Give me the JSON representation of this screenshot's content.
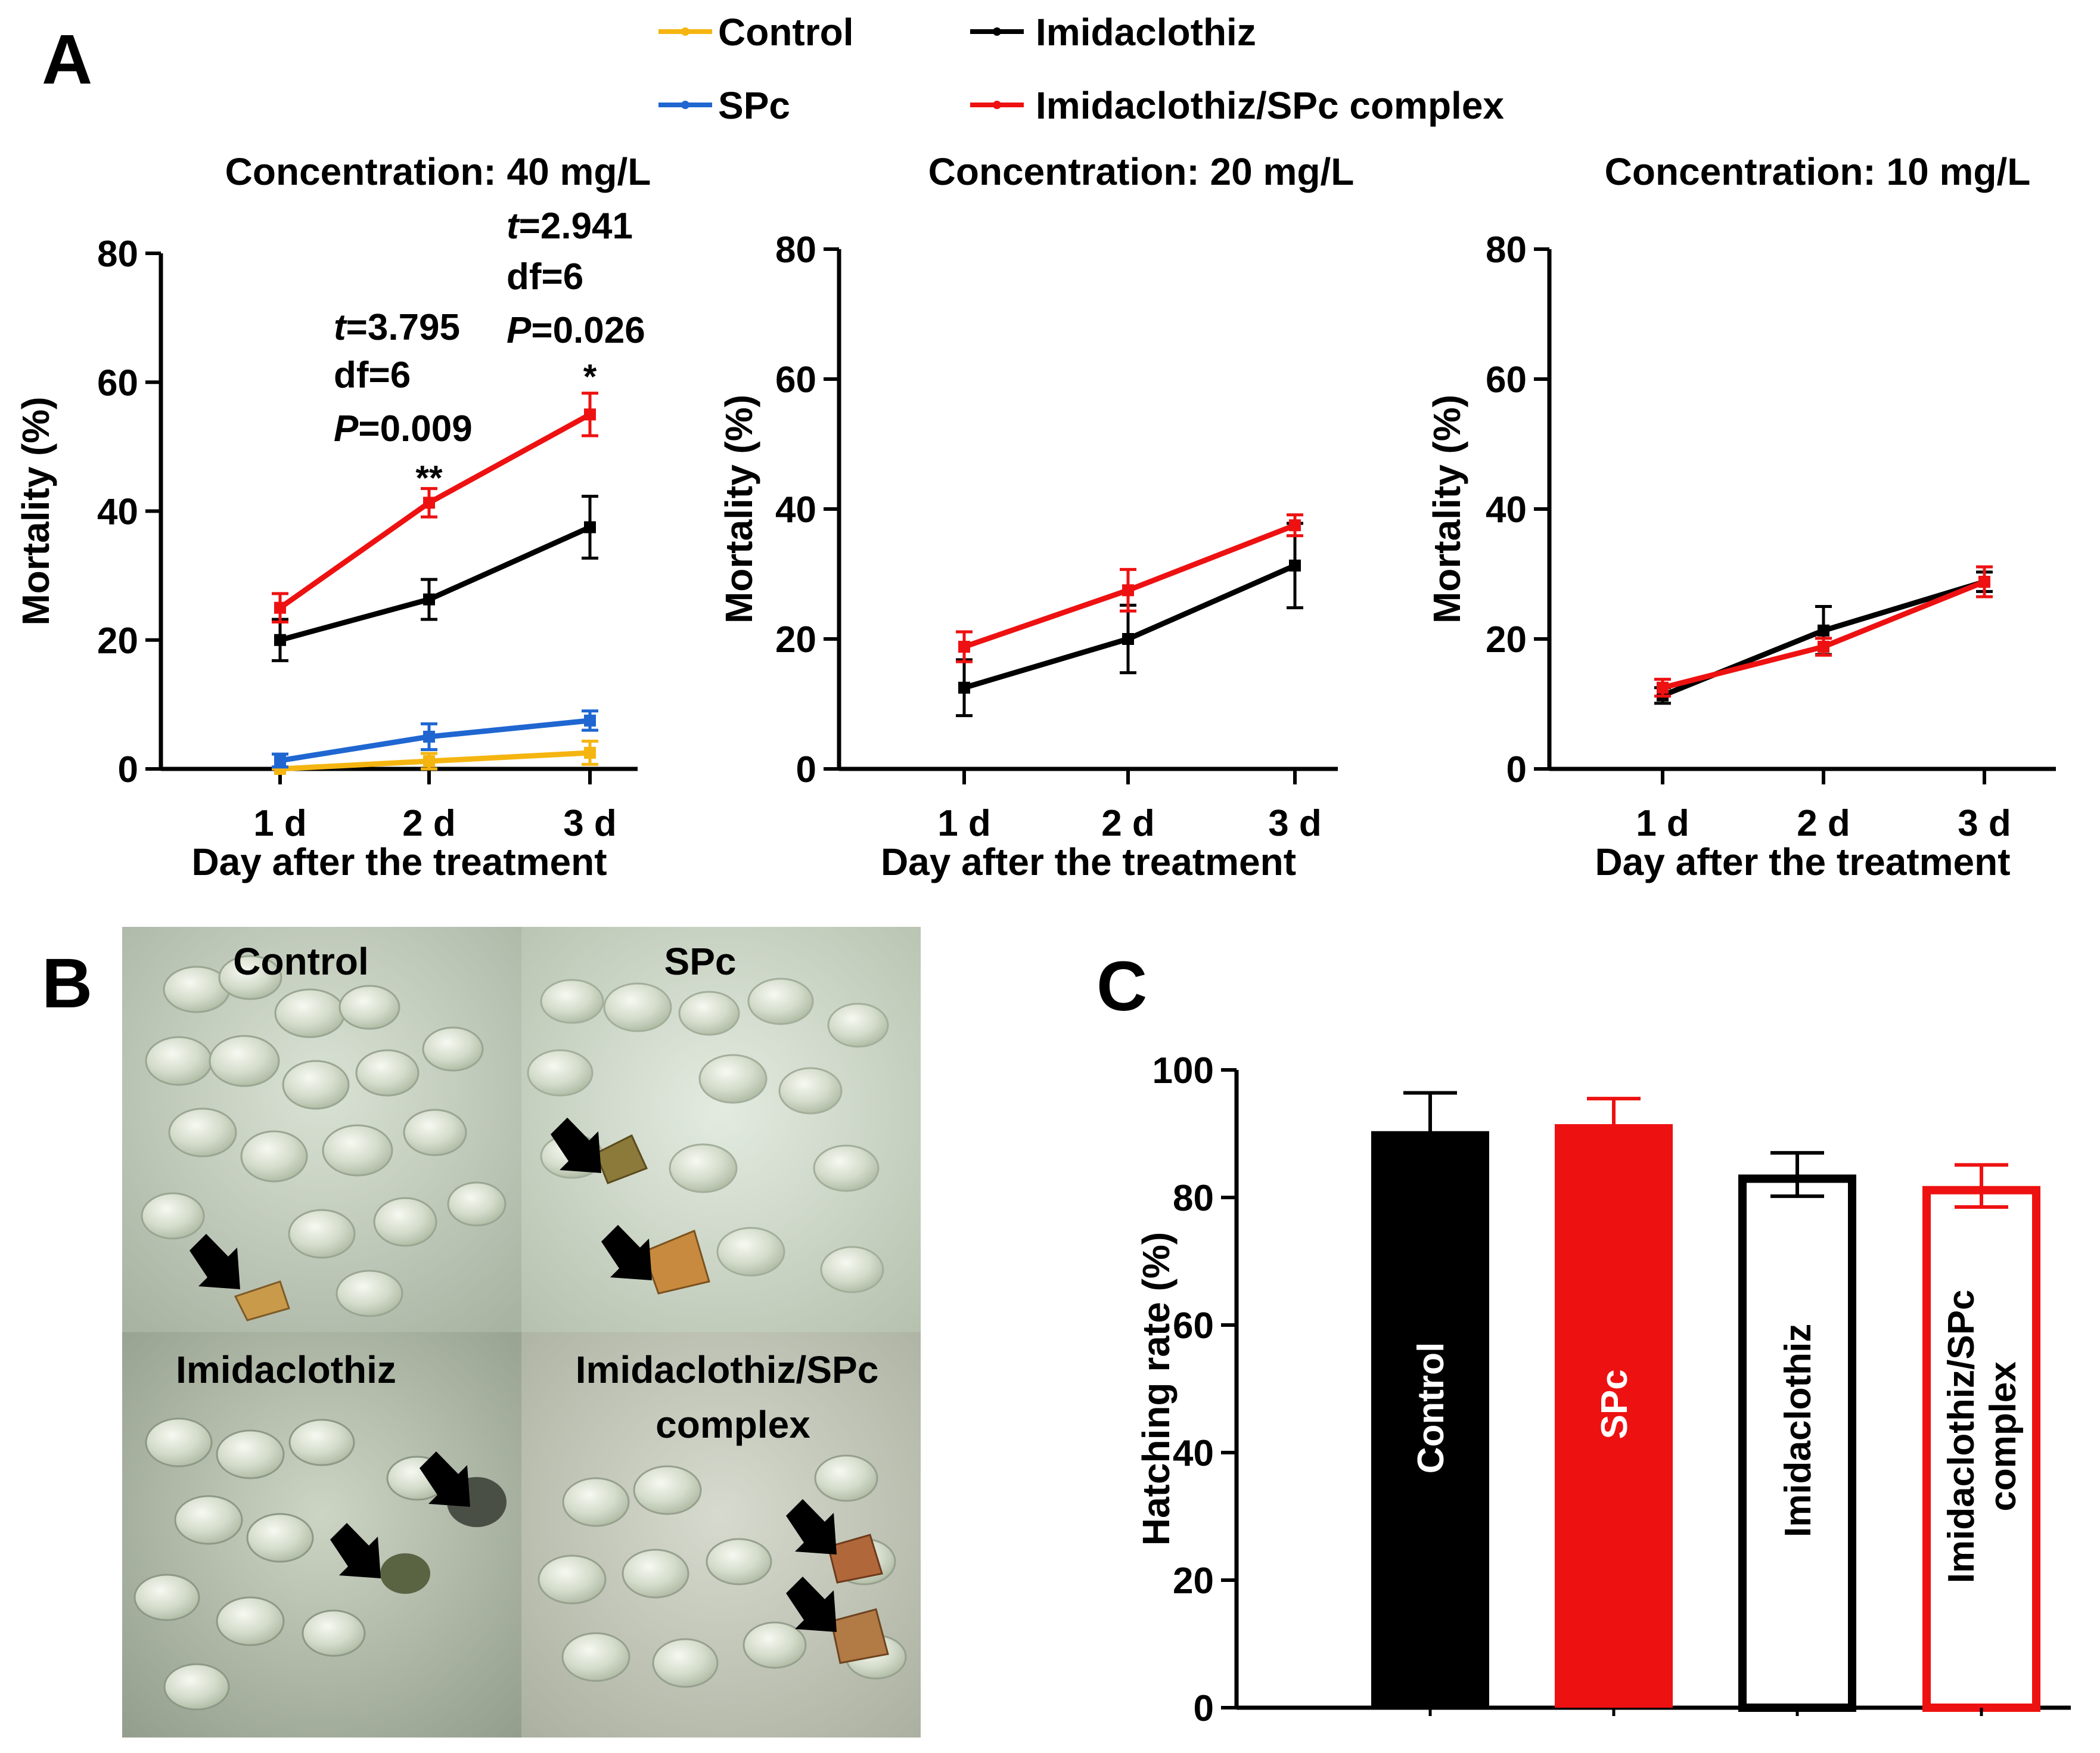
{
  "panels": {
    "a": "A",
    "b": "B",
    "c": "C"
  },
  "legend": {
    "control": "Control",
    "spc": "SPc",
    "imidaclothiz": "Imidaclothiz",
    "complex": "Imidaclothiz/SPc complex"
  },
  "colors": {
    "control": "#f5b511",
    "spc": "#1f66d1",
    "imidaclothiz": "#000000",
    "complex": "#ee1111"
  },
  "chart_data": [
    {
      "type": "line",
      "title": "Concentration: 40 mg/L",
      "xlabel": "Day after the treatment",
      "ylabel": "Mortality (%)",
      "categories": [
        "1 d",
        "2 d",
        "3 d"
      ],
      "ylim": [
        0,
        80
      ],
      "yticks": [
        0,
        20,
        40,
        60,
        80
      ],
      "yticklabels": [
        "0",
        "20",
        "40",
        "60",
        "80"
      ],
      "series": [
        {
          "name": "Control",
          "values": [
            0,
            1.2,
            2.5
          ],
          "errors": [
            0.3,
            1.2,
            1.8
          ],
          "color": "#f5b511"
        },
        {
          "name": "SPc",
          "values": [
            1.3,
            5.0,
            7.5
          ],
          "errors": [
            1.0,
            2.0,
            1.5
          ],
          "color": "#1f66d1"
        },
        {
          "name": "Imidaclothiz",
          "values": [
            20,
            26.3,
            37.5
          ],
          "errors": [
            3.2,
            3.1,
            4.8
          ],
          "color": "#000000"
        },
        {
          "name": "Imidaclothiz/SPc complex",
          "values": [
            25,
            41.3,
            55
          ],
          "errors": [
            2.2,
            2.2,
            3.3
          ],
          "color": "#ee1111"
        }
      ],
      "stats": [
        {
          "t_prefix": "t",
          "t_value": "=3.795",
          "df": "df=6",
          "p_prefix": "P",
          "p_value": "=0.009",
          "stars": "**"
        },
        {
          "t_prefix": "t",
          "t_value": "=2.941",
          "df": "df=6",
          "p_prefix": "P",
          "p_value": "=0.026",
          "stars": "*"
        }
      ]
    },
    {
      "type": "line",
      "title": "Concentration: 20 mg/L",
      "xlabel": "Day after the treatment",
      "ylabel": "Mortality (%)",
      "categories": [
        "1 d",
        "2 d",
        "3 d"
      ],
      "ylim": [
        0,
        80
      ],
      "yticks": [
        0,
        20,
        40,
        60,
        80
      ],
      "yticklabels": [
        "0",
        "20",
        "40",
        "60",
        "80"
      ],
      "series": [
        {
          "name": "Imidaclothiz",
          "values": [
            12.5,
            20,
            31.3
          ],
          "errors": [
            4.3,
            5.2,
            6.5
          ],
          "color": "#000000"
        },
        {
          "name": "Imidaclothiz/SPc complex",
          "values": [
            18.8,
            27.5,
            37.5
          ],
          "errors": [
            2.3,
            3.2,
            1.6
          ],
          "color": "#ee1111"
        }
      ]
    },
    {
      "type": "line",
      "title": "Concentration: 10 mg/L",
      "xlabel": "Day after the treatment",
      "ylabel": "Mortality (%)",
      "categories": [
        "1 d",
        "2 d",
        "3 d"
      ],
      "ylim": [
        0,
        80
      ],
      "yticks": [
        0,
        20,
        40,
        60,
        80
      ],
      "yticklabels": [
        "0",
        "20",
        "40",
        "60",
        "80"
      ],
      "series": [
        {
          "name": "Imidaclothiz",
          "values": [
            11.3,
            21.3,
            28.8
          ],
          "errors": [
            1.2,
            3.7,
            1.5
          ],
          "color": "#000000"
        },
        {
          "name": "Imidaclothiz/SPc complex",
          "values": [
            12.5,
            18.8,
            28.8
          ],
          "errors": [
            1.3,
            1.3,
            2.3
          ],
          "color": "#ee1111"
        }
      ]
    },
    {
      "type": "bar",
      "title": "",
      "xlabel": "",
      "ylabel": "Hatching rate (%)",
      "categories": [
        "Control",
        "SPc",
        "Imidaclothiz",
        "Imidaclothiz/SPc complex"
      ],
      "category_lines": [
        [
          "Control"
        ],
        [
          "SPc"
        ],
        [
          "Imidaclothiz"
        ],
        [
          "Imidaclothiz/SPc",
          "complex"
        ]
      ],
      "values": [
        90.4,
        91.5,
        83.6,
        81.8
      ],
      "errors": [
        6.0,
        4.0,
        3.4,
        3.3
      ],
      "fills": [
        "#000000",
        "#ee1111",
        "#ffffff",
        "#ffffff"
      ],
      "strokes": [
        "#000000",
        "#ee1111",
        "#000000",
        "#ee1111"
      ],
      "label_colors": [
        "#ffffff",
        "#ffffff",
        "#000000",
        "#000000"
      ],
      "ylim": [
        0,
        100
      ],
      "yticks": [
        0,
        20,
        40,
        60,
        80,
        100
      ],
      "yticklabels": [
        "0",
        "20",
        "40",
        "60",
        "80",
        "100"
      ]
    }
  ],
  "photos": {
    "control": "Control",
    "spc": "SPc",
    "imidaclothiz": "Imidaclothiz",
    "complex_line1": "Imidaclothiz/SPc",
    "complex_line2": "complex"
  }
}
